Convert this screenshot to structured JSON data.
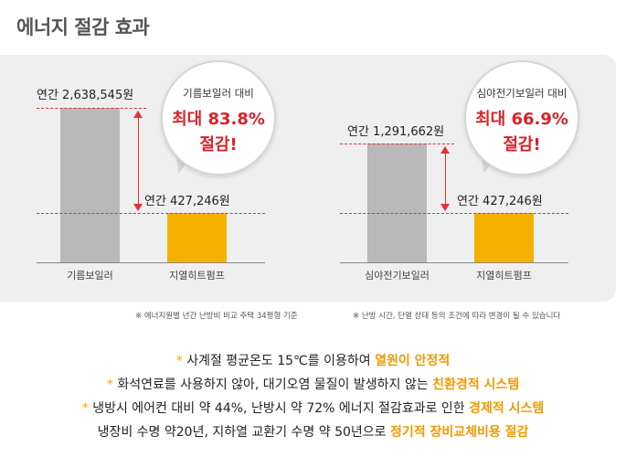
{
  "title": "에너지 절감 효과",
  "left_chart": {
    "bar1_value": "연간 2,638,545원",
    "bar1_label": "기름보일러",
    "bar2_value": "연간 427,246원",
    "bar2_label": "지열히트펌프",
    "bubble_line1": "기름보일러 대비",
    "bubble_line2": "최대 83.8%",
    "bubble_line3": "절감!"
  },
  "right_chart": {
    "bar1_value": "연간 1,291,662원",
    "bar1_label": "심야전기보일러",
    "bar2_value": "연간 427,246원",
    "bar2_label": "지열히트펌프",
    "bubble_line1": "심야전기보일러 대비",
    "bubble_line2": "최대 66.9%",
    "bubble_line3": "절감!"
  },
  "notes": {
    "left": "※ 에너지원별 년간 난방비 비교  주택 34평형 기준",
    "right": "※ 난방 시간, 단열 상태 등의 조건에 따라 변경이 될 수 있습니다"
  },
  "bullets": [
    {
      "star": "*",
      "text": "사계절 평균온도 15℃를 이용하여",
      "highlight": "열원이 안정적"
    },
    {
      "star": "*",
      "text": "화석연료를 사용하지 않아, 대기오염 물질이 발생하지 않는",
      "highlight": "친환경적 시스템"
    },
    {
      "star": "*",
      "text": "냉방시 에어컨 대비 약 44%, 난방시 약 72% 에너지 절감효과로 인한",
      "highlight": "경제적 시스템"
    },
    {
      "star": "",
      "text": "냉장비 수명 약20년, 지하열 교환기 수명 약 50년으로",
      "highlight": "정기적 장비교체비용 절감"
    }
  ],
  "colors": {
    "accent_red": "#d8222a",
    "bar_orange": "#f6b100",
    "bar_gray": "#b9b9b9",
    "highlight_orange": "#f09a00"
  }
}
